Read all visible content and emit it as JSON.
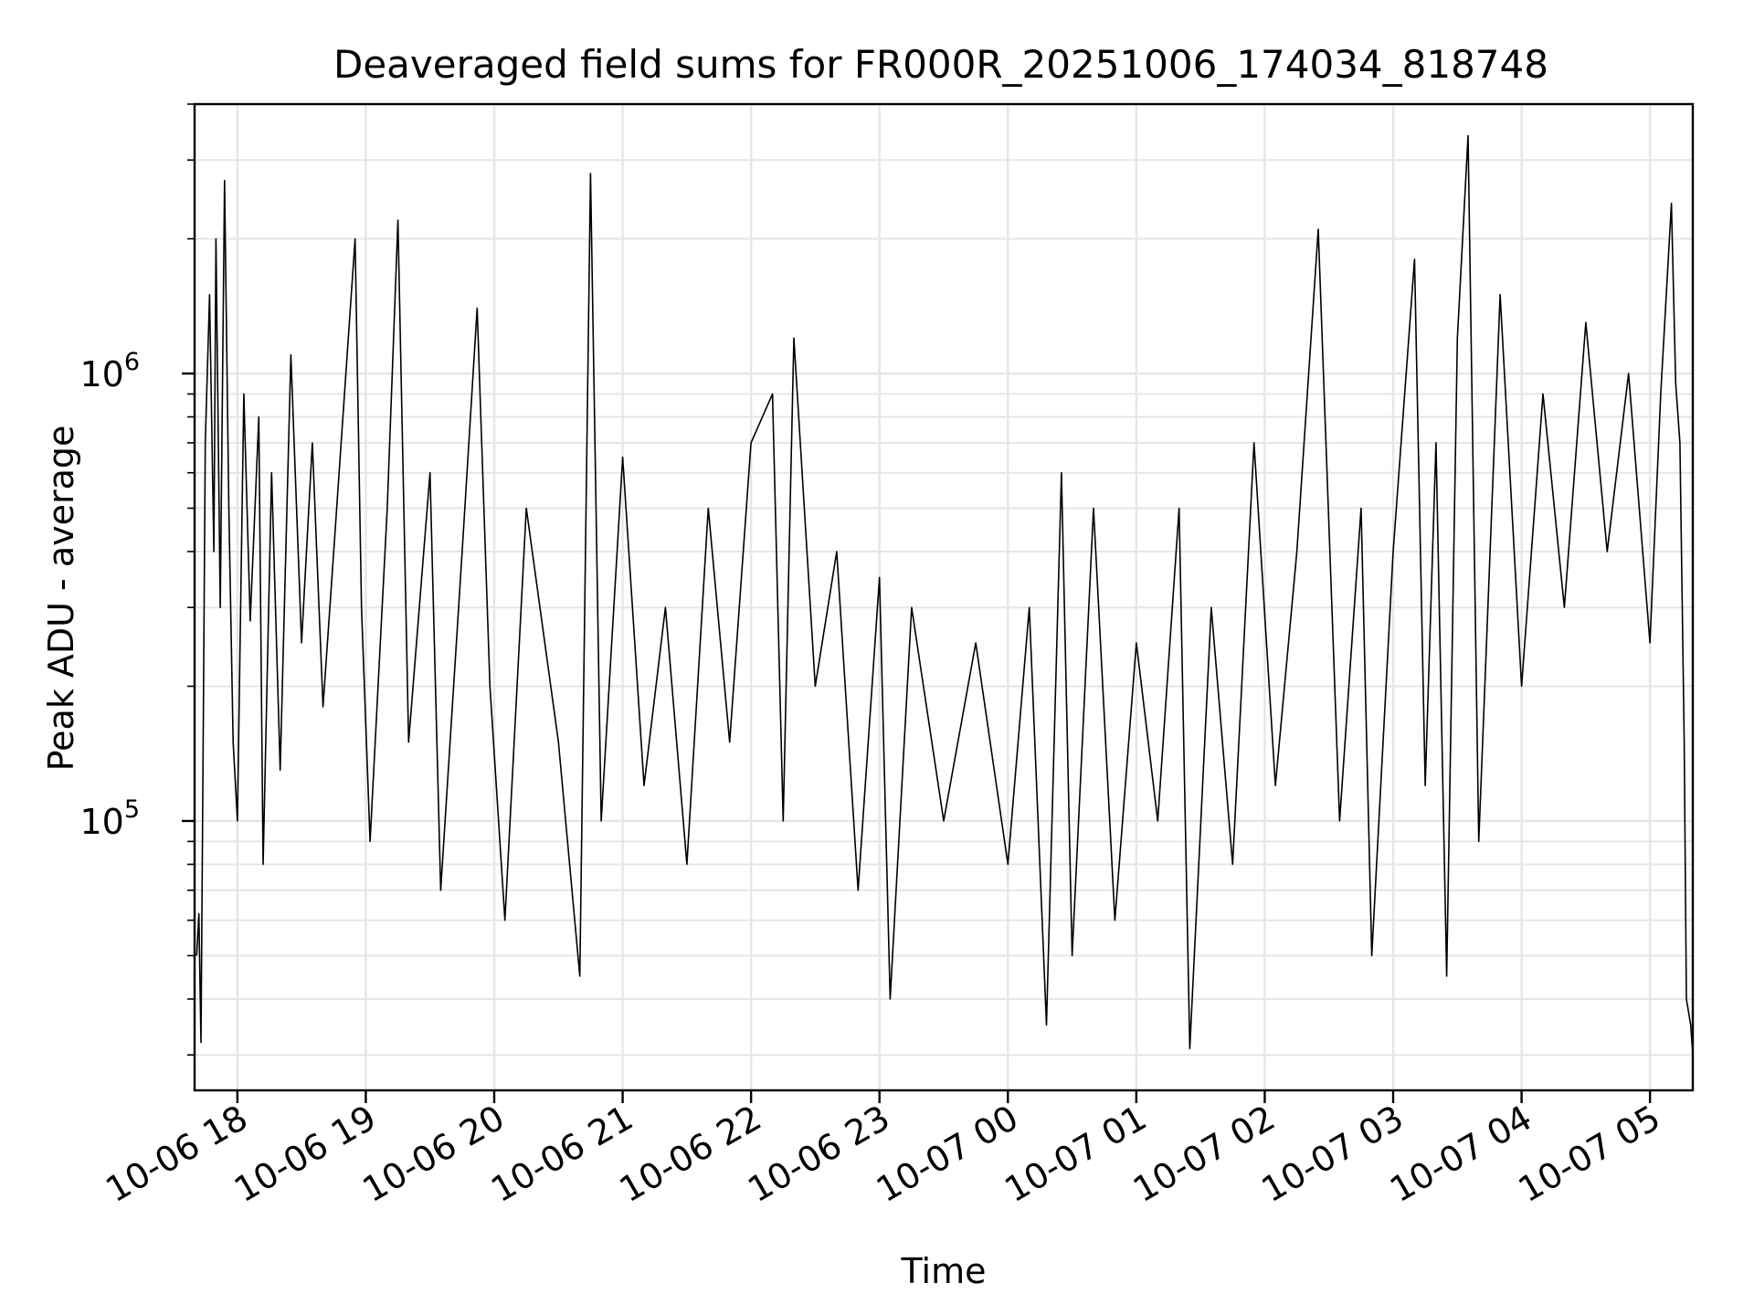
{
  "chart_data": {
    "type": "line",
    "title": "Deaveraged field sums for FR000R_20251006_174034_818748",
    "xlabel": "Time",
    "ylabel": "Peak ADU - average",
    "yscale": "log",
    "xlim": [
      "2025-10-06 17:40",
      "2025-10-07 05:20"
    ],
    "ylim": [
      25000,
      4000000
    ],
    "x_ticks": [
      "10-06 18",
      "10-06 19",
      "10-06 20",
      "10-06 21",
      "10-06 22",
      "10-06 23",
      "10-07 00",
      "10-07 01",
      "10-07 02",
      "10-07 03",
      "10-07 04",
      "10-07 05"
    ],
    "y_ticks": [
      {
        "value": 100000,
        "base": "10",
        "exp": "5"
      },
      {
        "value": 1000000,
        "base": "10",
        "exp": "6"
      }
    ],
    "grid": true,
    "line_color": "#000000",
    "series": [
      {
        "points": [
          [
            "2025-10-06 17:41",
            50000
          ],
          [
            "2025-10-06 17:42",
            62000
          ],
          [
            "2025-10-06 17:43",
            32000
          ],
          [
            "2025-10-06 17:44",
            150000
          ],
          [
            "2025-10-06 17:45",
            700000
          ],
          [
            "2025-10-06 17:47",
            1500000
          ],
          [
            "2025-10-06 17:49",
            400000
          ],
          [
            "2025-10-06 17:50",
            2000000
          ],
          [
            "2025-10-06 17:52",
            300000
          ],
          [
            "2025-10-06 17:54",
            2700000
          ],
          [
            "2025-10-06 17:56",
            500000
          ],
          [
            "2025-10-06 17:58",
            150000
          ],
          [
            "2025-10-06 18:00",
            100000
          ],
          [
            "2025-10-06 18:03",
            900000
          ],
          [
            "2025-10-06 18:06",
            280000
          ],
          [
            "2025-10-06 18:10",
            800000
          ],
          [
            "2025-10-06 18:12",
            80000
          ],
          [
            "2025-10-06 18:16",
            600000
          ],
          [
            "2025-10-06 18:20",
            130000
          ],
          [
            "2025-10-06 18:25",
            1100000
          ],
          [
            "2025-10-06 18:30",
            250000
          ],
          [
            "2025-10-06 18:35",
            700000
          ],
          [
            "2025-10-06 18:40",
            180000
          ],
          [
            "2025-10-06 18:45",
            400000
          ],
          [
            "2025-10-06 18:55",
            2000000
          ],
          [
            "2025-10-06 18:58",
            300000
          ],
          [
            "2025-10-06 19:02",
            90000
          ],
          [
            "2025-10-06 19:10",
            500000
          ],
          [
            "2025-10-06 19:15",
            2200000
          ],
          [
            "2025-10-06 19:20",
            150000
          ],
          [
            "2025-10-06 19:30",
            600000
          ],
          [
            "2025-10-06 19:35",
            70000
          ],
          [
            "2025-10-06 19:45",
            400000
          ],
          [
            "2025-10-06 19:52",
            1400000
          ],
          [
            "2025-10-06 19:58",
            200000
          ],
          [
            "2025-10-06 20:05",
            60000
          ],
          [
            "2025-10-06 20:15",
            500000
          ],
          [
            "2025-10-06 20:30",
            150000
          ],
          [
            "2025-10-06 20:40",
            45000
          ],
          [
            "2025-10-06 20:45",
            2800000
          ],
          [
            "2025-10-06 20:50",
            100000
          ],
          [
            "2025-10-06 21:00",
            650000
          ],
          [
            "2025-10-06 21:10",
            120000
          ],
          [
            "2025-10-06 21:20",
            300000
          ],
          [
            "2025-10-06 21:30",
            80000
          ],
          [
            "2025-10-06 21:40",
            500000
          ],
          [
            "2025-10-06 21:50",
            150000
          ],
          [
            "2025-10-06 22:00",
            700000
          ],
          [
            "2025-10-06 22:10",
            900000
          ],
          [
            "2025-10-06 22:15",
            100000
          ],
          [
            "2025-10-06 22:20",
            1200000
          ],
          [
            "2025-10-06 22:30",
            200000
          ],
          [
            "2025-10-06 22:40",
            400000
          ],
          [
            "2025-10-06 22:50",
            70000
          ],
          [
            "2025-10-06 23:00",
            350000
          ],
          [
            "2025-10-06 23:05",
            40000
          ],
          [
            "2025-10-06 23:15",
            300000
          ],
          [
            "2025-10-06 23:30",
            100000
          ],
          [
            "2025-10-06 23:45",
            250000
          ],
          [
            "2025-10-07 00:00",
            80000
          ],
          [
            "2025-10-07 00:10",
            300000
          ],
          [
            "2025-10-07 00:18",
            35000
          ],
          [
            "2025-10-07 00:25",
            600000
          ],
          [
            "2025-10-07 00:30",
            50000
          ],
          [
            "2025-10-07 00:40",
            500000
          ],
          [
            "2025-10-07 00:50",
            60000
          ],
          [
            "2025-10-07 01:00",
            250000
          ],
          [
            "2025-10-07 01:10",
            100000
          ],
          [
            "2025-10-07 01:20",
            500000
          ],
          [
            "2025-10-07 01:25",
            31000
          ],
          [
            "2025-10-07 01:35",
            300000
          ],
          [
            "2025-10-07 01:45",
            80000
          ],
          [
            "2025-10-07 01:55",
            700000
          ],
          [
            "2025-10-07 02:05",
            120000
          ],
          [
            "2025-10-07 02:15",
            400000
          ],
          [
            "2025-10-07 02:25",
            2100000
          ],
          [
            "2025-10-07 02:35",
            100000
          ],
          [
            "2025-10-07 02:45",
            500000
          ],
          [
            "2025-10-07 02:50",
            50000
          ],
          [
            "2025-10-07 03:00",
            400000
          ],
          [
            "2025-10-07 03:10",
            1800000
          ],
          [
            "2025-10-07 03:15",
            120000
          ],
          [
            "2025-10-07 03:20",
            700000
          ],
          [
            "2025-10-07 03:25",
            45000
          ],
          [
            "2025-10-07 03:30",
            1200000
          ],
          [
            "2025-10-07 03:35",
            3400000
          ],
          [
            "2025-10-07 03:40",
            90000
          ],
          [
            "2025-10-07 03:50",
            1500000
          ],
          [
            "2025-10-07 04:00",
            200000
          ],
          [
            "2025-10-07 04:10",
            900000
          ],
          [
            "2025-10-07 04:20",
            300000
          ],
          [
            "2025-10-07 04:30",
            1300000
          ],
          [
            "2025-10-07 04:40",
            400000
          ],
          [
            "2025-10-07 04:50",
            1000000
          ],
          [
            "2025-10-07 05:00",
            250000
          ],
          [
            "2025-10-07 05:05",
            900000
          ],
          [
            "2025-10-07 05:10",
            2400000
          ],
          [
            "2025-10-07 05:12",
            950000
          ],
          [
            "2025-10-07 05:14",
            700000
          ],
          [
            "2025-10-07 05:16",
            150000
          ],
          [
            "2025-10-07 05:17",
            40000
          ],
          [
            "2025-10-07 05:19",
            35000
          ],
          [
            "2025-10-07 05:20",
            30000
          ]
        ]
      }
    ]
  }
}
